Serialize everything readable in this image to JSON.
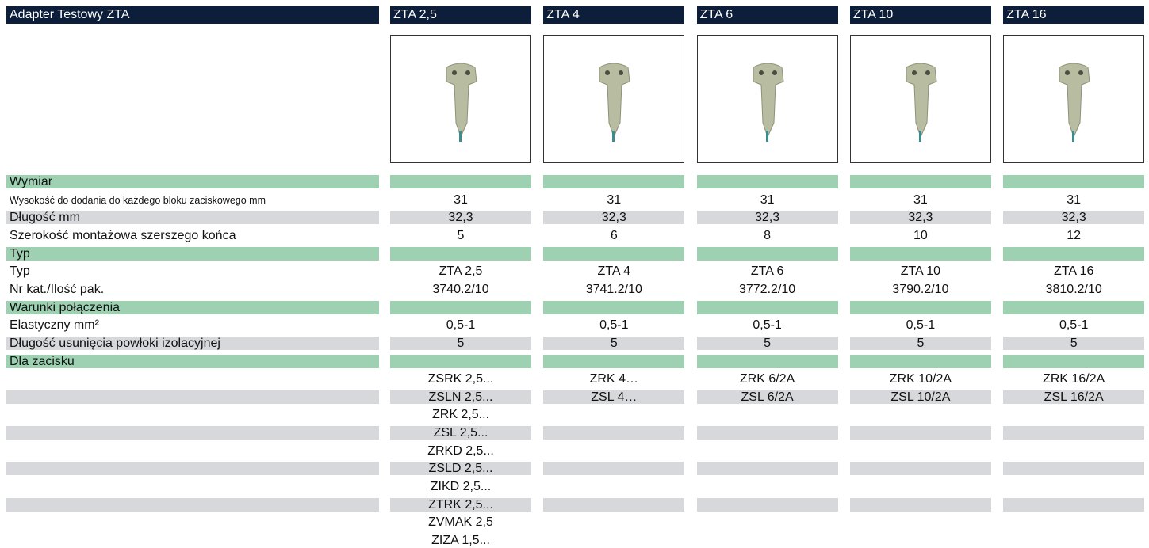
{
  "header": {
    "title": "Adapter Testowy ZTA"
  },
  "columns": [
    "ZTA 2,5",
    "ZTA 4",
    "ZTA 6",
    "ZTA 10",
    "ZTA 16"
  ],
  "sections": [
    {
      "title": "Wymiar",
      "striped": true,
      "rows": [
        {
          "label": "Wysokość do dodania do każdego bloku zaciskowego mm",
          "values": [
            "31",
            "31",
            "31",
            "31",
            "31"
          ]
        },
        {
          "label": "Długość mm",
          "values": [
            "32,3",
            "32,3",
            "32,3",
            "32,3",
            "32,3"
          ]
        },
        {
          "label": "Szerokość montażowa szerszego końca",
          "values": [
            "5",
            "6",
            "8",
            "10",
            "12"
          ]
        }
      ]
    },
    {
      "title": "Typ",
      "striped": false,
      "rows": [
        {
          "label": "Typ",
          "values": [
            "ZTA 2,5",
            "ZTA 4",
            "ZTA 6",
            "ZTA 10",
            "ZTA 16"
          ]
        },
        {
          "label": "Nr kat./Ilość pak.",
          "values": [
            "3740.2/10",
            "3741.2/10",
            "3772.2/10",
            "3790.2/10",
            "3810.2/10"
          ]
        }
      ]
    },
    {
      "title": "Warunki połączenia",
      "striped": true,
      "rows": [
        {
          "label": "Elastyczny mm²",
          "values": [
            "0,5-1",
            "0,5-1",
            "0,5-1",
            "0,5-1",
            "0,5-1"
          ]
        },
        {
          "label": "Długość usunięcia powłoki izolacyjnej",
          "values": [
            "5",
            "5",
            "5",
            "5",
            "5"
          ]
        }
      ]
    },
    {
      "title": "Dla zacisku",
      "striped": true,
      "rows": [
        {
          "values": [
            "ZSRK 2,5...",
            "ZRK 4…",
            "ZRK 6/2A",
            "ZRK 10/2A",
            "ZRK 16/2A"
          ]
        },
        {
          "values": [
            "ZSLN 2,5...",
            "ZSL 4…",
            "ZSL 6/2A",
            "ZSL 10/2A",
            "ZSL 16/2A"
          ]
        },
        {
          "values": [
            "ZRK 2,5...",
            null,
            null,
            null,
            null
          ]
        },
        {
          "values": [
            "ZSL 2,5...",
            null,
            null,
            null,
            null
          ]
        },
        {
          "values": [
            "ZRKD 2,5...",
            null,
            null,
            null,
            null
          ]
        },
        {
          "values": [
            "ZSLD 2,5...",
            null,
            null,
            null,
            null
          ]
        },
        {
          "values": [
            "ZIKD 2,5...",
            null,
            null,
            null,
            null
          ]
        },
        {
          "values": [
            "ZTRK 2,5...",
            null,
            null,
            null,
            null
          ]
        },
        {
          "values": [
            "ZVMAK 2,5"
          ]
        },
        {
          "values": [
            "ZIZA 1,5..."
          ]
        }
      ]
    }
  ]
}
